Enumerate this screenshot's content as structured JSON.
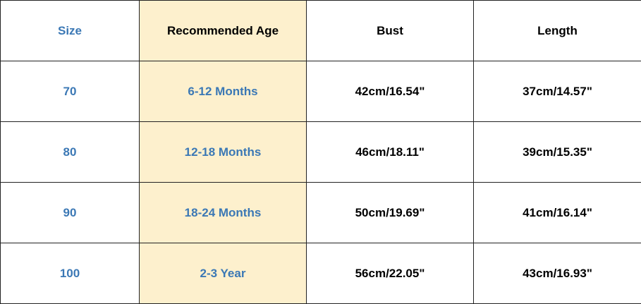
{
  "table": {
    "header": [
      "Size",
      "Recommended Age",
      "Bust",
      "Length"
    ],
    "rows": [
      [
        "70",
        "6-12 Months",
        "42cm/16.54\"",
        "37cm/14.57\""
      ],
      [
        "80",
        "12-18 Months",
        "46cm/18.11\"",
        "39cm/15.35\""
      ],
      [
        "90",
        "18-24 Months",
        "50cm/19.69\"",
        "41cm/16.14\""
      ],
      [
        "100",
        "2-3 Year",
        "56cm/22.05\"",
        "43cm/16.93\""
      ]
    ]
  }
}
